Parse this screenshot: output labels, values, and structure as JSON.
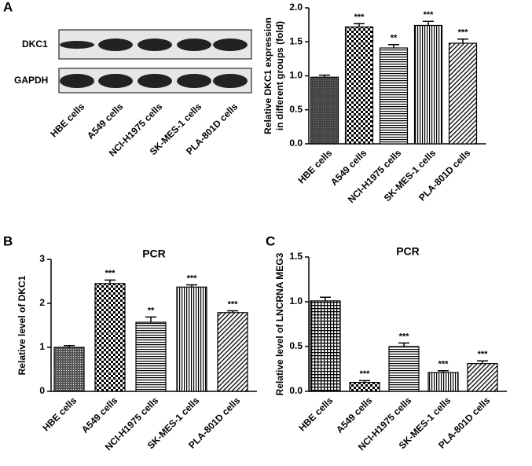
{
  "panel_labels": [
    "A",
    "B",
    "C"
  ],
  "blot": {
    "bands": [
      "DKC1",
      "GAPDH"
    ],
    "lanes": [
      "HBE cells",
      "A549 cells",
      "NCI-H1975 cells",
      "SK-MES-1 cells",
      "PLA-801D cells"
    ]
  },
  "chart_data": [
    {
      "type": "bar",
      "y_label": [
        "Relative DKC1 expression",
        "in different groups (fold)"
      ],
      "categories": [
        "HBE cells",
        "A549 cells",
        "NCI-H1975 cells",
        "SK-MES-1 cells",
        "PLA-801D cells"
      ],
      "values": [
        0.98,
        1.72,
        1.41,
        1.74,
        1.48
      ],
      "errors": [
        0.03,
        0.05,
        0.05,
        0.06,
        0.06
      ],
      "annotations": [
        null,
        "***",
        "**",
        "***",
        "***"
      ],
      "fills": [
        "solid",
        "checker",
        "hlines",
        "vlines",
        "diagonal"
      ],
      "color": "#000000",
      "ylim": [
        0,
        2
      ],
      "yticks": [
        {
          "value": 0,
          "label": "0.0"
        },
        {
          "value": 0.5,
          "label": "0.5"
        },
        {
          "value": 1,
          "label": "1.0"
        },
        {
          "value": 1.5,
          "label": "1.5"
        },
        {
          "value": 2,
          "label": "2.0"
        }
      ]
    },
    {
      "type": "bar",
      "title": "PCR",
      "y_label": [
        "Relative level of DKC1"
      ],
      "categories": [
        "HBE cells",
        "A549 cells",
        "NCI-H1975 cells",
        "SK-MES-1 cells",
        "PLA-801D cells"
      ],
      "values": [
        1.0,
        2.45,
        1.57,
        2.37,
        1.79
      ],
      "errors": [
        0.04,
        0.08,
        0.12,
        0.05,
        0.04
      ],
      "annotations": [
        null,
        "***",
        "**",
        "***",
        "***"
      ],
      "fills": [
        "dots",
        "checker",
        "hlines",
        "vlines",
        "diagonal"
      ],
      "color": "#000000",
      "ylim": [
        0,
        3
      ],
      "yticks": [
        0,
        1,
        2,
        3
      ]
    },
    {
      "type": "bar",
      "title": "PCR",
      "y_label": [
        "Relative level of LNCRNA MEG3"
      ],
      "categories": [
        "HBE cells",
        "A549 cells",
        "NCI-H1975 cells",
        "SK-MES-1 cells",
        "PLA-801D cells"
      ],
      "values": [
        1.01,
        0.1,
        0.5,
        0.21,
        0.31
      ],
      "errors": [
        0.04,
        0.02,
        0.04,
        0.02,
        0.03
      ],
      "annotations": [
        null,
        "***",
        "***",
        "***",
        "***"
      ],
      "fills": [
        "cross",
        "checker",
        "hlines",
        "vlines",
        "diagonal"
      ],
      "color": "#000000",
      "ylim": [
        0,
        1.5
      ],
      "yticks": [
        {
          "value": 0,
          "label": "0.0"
        },
        {
          "value": 0.5,
          "label": "0.5"
        },
        {
          "value": 1,
          "label": "1.0"
        },
        {
          "value": 1.5,
          "label": "1.5"
        }
      ]
    }
  ]
}
